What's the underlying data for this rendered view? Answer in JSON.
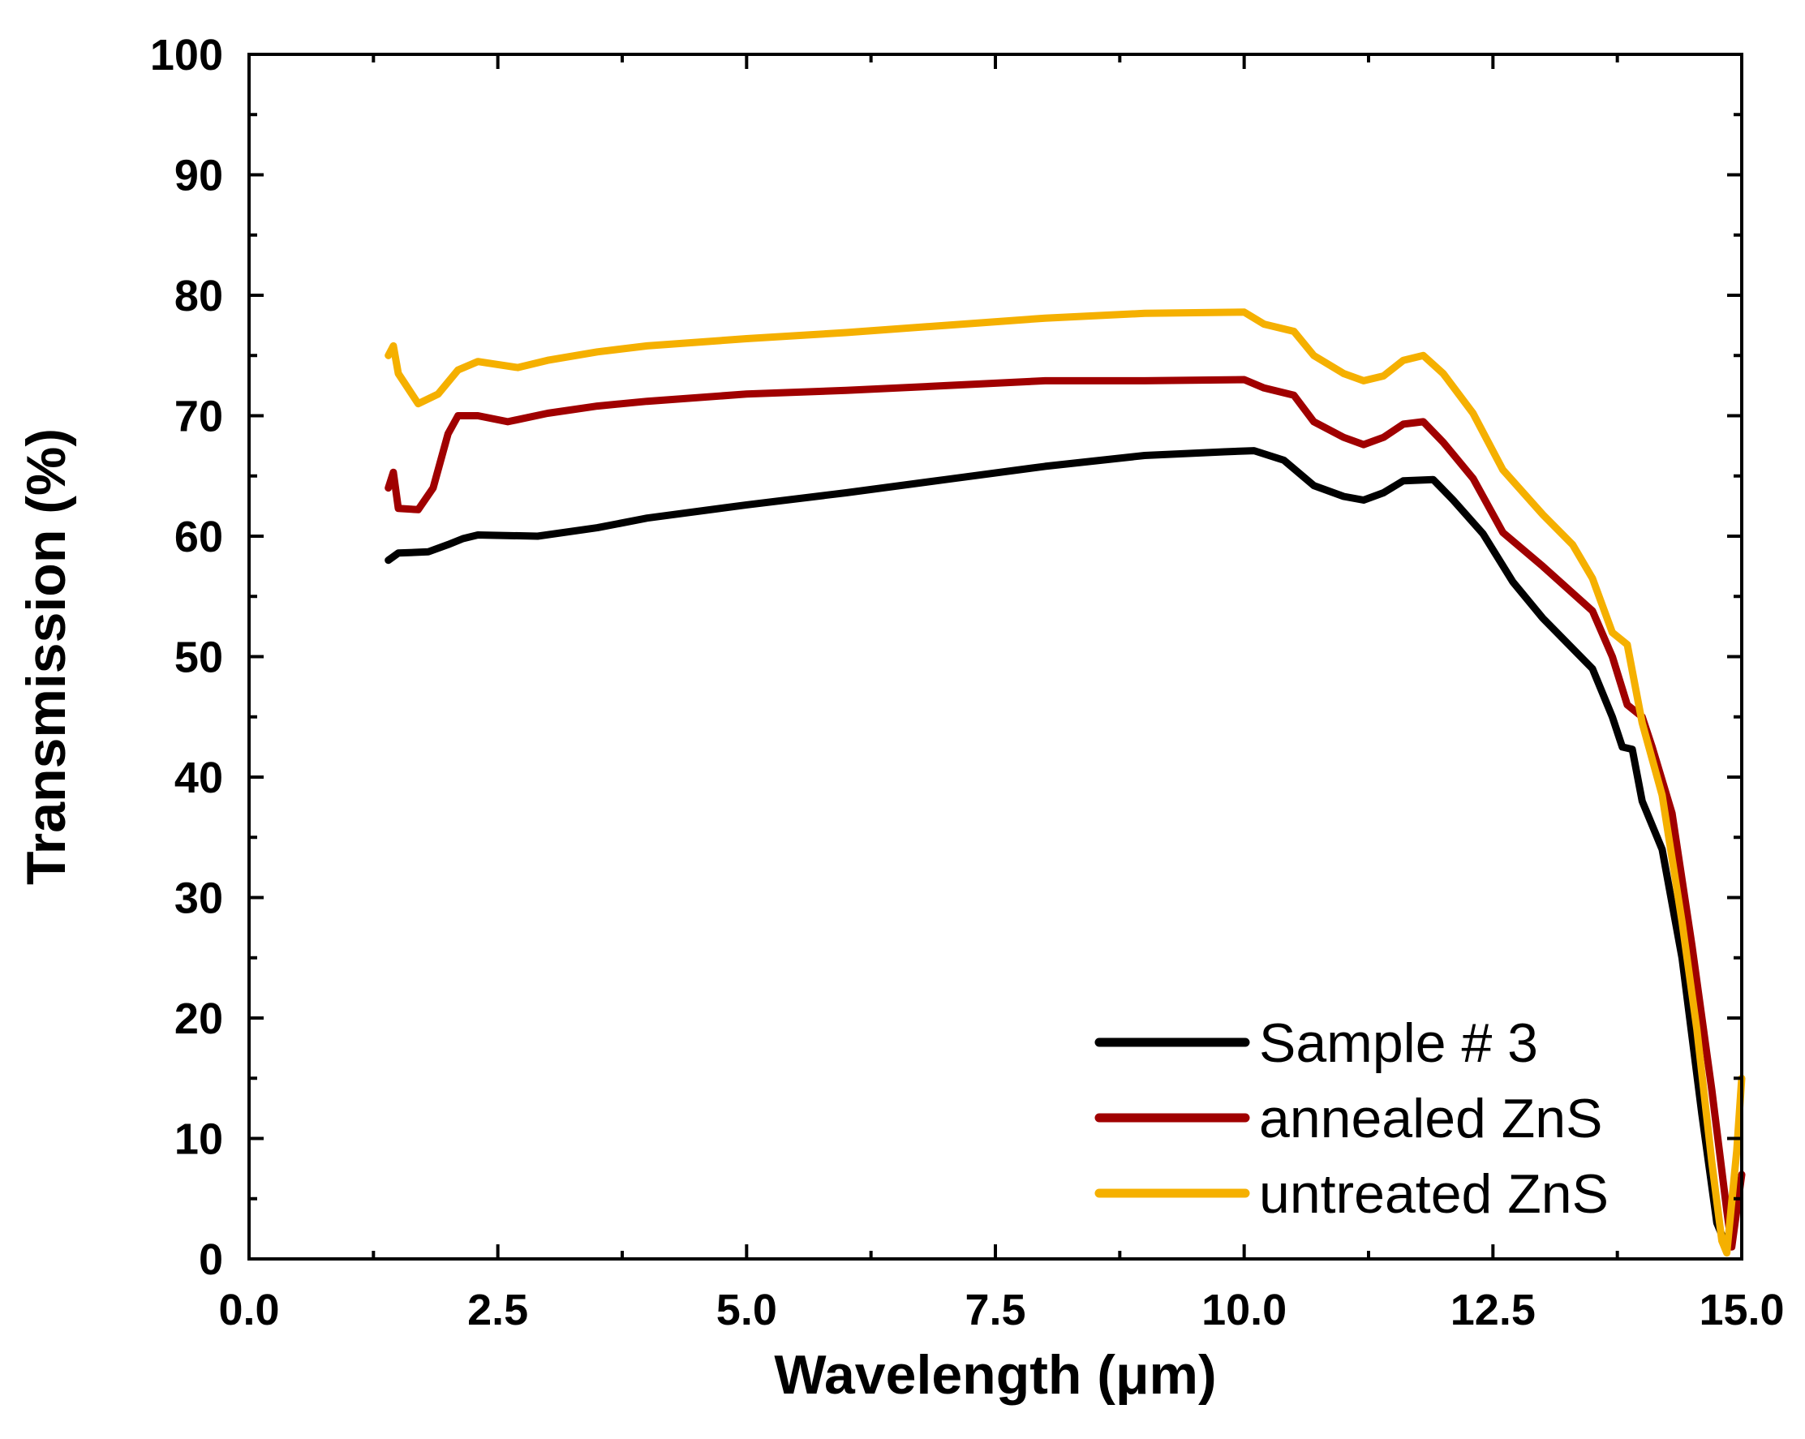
{
  "chart_data": {
    "type": "line",
    "title": "",
    "xlabel": "Wavelength (μm)",
    "ylabel": "Transmission (%)",
    "xlim": [
      0,
      15
    ],
    "ylim": [
      0,
      100
    ],
    "x_ticks": [
      "0.0",
      "2.5",
      "5.0",
      "7.5",
      "10.0",
      "12.5",
      "15.0"
    ],
    "y_ticks": [
      "0",
      "10",
      "20",
      "30",
      "40",
      "50",
      "60",
      "70",
      "80",
      "90",
      "100"
    ],
    "grid": false,
    "legend_position": "bottom-right",
    "series": [
      {
        "name": "Sample # 3",
        "color": "#000000",
        "points": [
          [
            1.4,
            58
          ],
          [
            1.5,
            58.6
          ],
          [
            1.8,
            58.7
          ],
          [
            2.0,
            59.3
          ],
          [
            2.15,
            59.8
          ],
          [
            2.3,
            60.1
          ],
          [
            2.9,
            60
          ],
          [
            3.5,
            60.7
          ],
          [
            4.0,
            61.5
          ],
          [
            5.0,
            62.6
          ],
          [
            6.0,
            63.6
          ],
          [
            7.0,
            64.7
          ],
          [
            8.0,
            65.8
          ],
          [
            9.0,
            66.7
          ],
          [
            9.8,
            67
          ],
          [
            10.1,
            67.1
          ],
          [
            10.4,
            66.3
          ],
          [
            10.7,
            64.2
          ],
          [
            11.0,
            63.3
          ],
          [
            11.2,
            63
          ],
          [
            11.4,
            63.6
          ],
          [
            11.6,
            64.6
          ],
          [
            11.9,
            64.7
          ],
          [
            12.1,
            63
          ],
          [
            12.4,
            60.2
          ],
          [
            12.7,
            56.2
          ],
          [
            13.0,
            53.2
          ],
          [
            13.5,
            49
          ],
          [
            13.7,
            45
          ],
          [
            13.8,
            42.5
          ],
          [
            13.9,
            42.3
          ],
          [
            14.0,
            38
          ],
          [
            14.2,
            34
          ],
          [
            14.4,
            25
          ],
          [
            14.6,
            12
          ],
          [
            14.75,
            3
          ],
          [
            14.85,
            1
          ],
          [
            14.95,
            6
          ]
        ]
      },
      {
        "name": "annealed ZnS",
        "color": "#a00000",
        "points": [
          [
            1.4,
            64
          ],
          [
            1.45,
            65.3
          ],
          [
            1.5,
            62.3
          ],
          [
            1.7,
            62.2
          ],
          [
            1.85,
            64
          ],
          [
            2.0,
            68.5
          ],
          [
            2.1,
            70
          ],
          [
            2.3,
            70
          ],
          [
            2.6,
            69.5
          ],
          [
            3.0,
            70.2
          ],
          [
            3.5,
            70.8
          ],
          [
            4.0,
            71.2
          ],
          [
            5.0,
            71.8
          ],
          [
            6.0,
            72.1
          ],
          [
            7.0,
            72.5
          ],
          [
            8.0,
            72.9
          ],
          [
            9.0,
            72.9
          ],
          [
            10.0,
            73
          ],
          [
            10.2,
            72.3
          ],
          [
            10.5,
            71.7
          ],
          [
            10.7,
            69.5
          ],
          [
            11.0,
            68.2
          ],
          [
            11.2,
            67.6
          ],
          [
            11.4,
            68.2
          ],
          [
            11.6,
            69.3
          ],
          [
            11.8,
            69.5
          ],
          [
            12.0,
            67.8
          ],
          [
            12.3,
            64.8
          ],
          [
            12.6,
            60.3
          ],
          [
            13.0,
            57.5
          ],
          [
            13.5,
            53.8
          ],
          [
            13.7,
            50
          ],
          [
            13.85,
            46
          ],
          [
            14.0,
            45
          ],
          [
            14.1,
            42.5
          ],
          [
            14.3,
            37
          ],
          [
            14.5,
            26
          ],
          [
            14.7,
            14
          ],
          [
            14.85,
            4
          ],
          [
            14.9,
            1
          ],
          [
            15.0,
            7
          ]
        ]
      },
      {
        "name": "untreated ZnS",
        "color": "#f5b000",
        "points": [
          [
            1.4,
            75
          ],
          [
            1.45,
            75.8
          ],
          [
            1.5,
            73.5
          ],
          [
            1.7,
            71
          ],
          [
            1.9,
            71.8
          ],
          [
            2.1,
            73.8
          ],
          [
            2.3,
            74.5
          ],
          [
            2.7,
            74
          ],
          [
            3.0,
            74.6
          ],
          [
            3.5,
            75.3
          ],
          [
            4.0,
            75.8
          ],
          [
            5.0,
            76.4
          ],
          [
            6.0,
            76.9
          ],
          [
            7.0,
            77.5
          ],
          [
            8.0,
            78.1
          ],
          [
            9.0,
            78.5
          ],
          [
            10.0,
            78.6
          ],
          [
            10.2,
            77.6
          ],
          [
            10.5,
            77
          ],
          [
            10.7,
            75
          ],
          [
            11.0,
            73.5
          ],
          [
            11.2,
            72.9
          ],
          [
            11.4,
            73.3
          ],
          [
            11.6,
            74.6
          ],
          [
            11.8,
            75
          ],
          [
            12.0,
            73.5
          ],
          [
            12.3,
            70.2
          ],
          [
            12.6,
            65.5
          ],
          [
            13.0,
            61.8
          ],
          [
            13.3,
            59.3
          ],
          [
            13.5,
            56.5
          ],
          [
            13.7,
            52
          ],
          [
            13.85,
            51
          ],
          [
            14.0,
            44.5
          ],
          [
            14.2,
            38.5
          ],
          [
            14.4,
            28
          ],
          [
            14.55,
            19
          ],
          [
            14.7,
            8
          ],
          [
            14.8,
            1.5
          ],
          [
            14.85,
            0.5
          ],
          [
            14.95,
            9
          ],
          [
            15.0,
            15
          ]
        ]
      }
    ]
  }
}
